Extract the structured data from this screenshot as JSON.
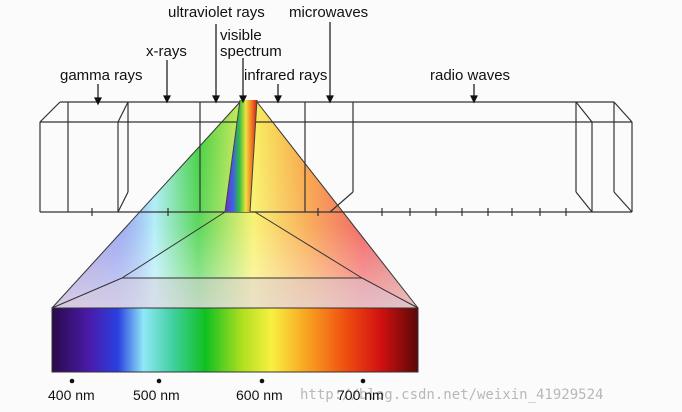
{
  "diagram": {
    "band_labels": {
      "gamma": "gamma rays",
      "xray": "x-rays",
      "ultraviolet": "ultraviolet rays",
      "visible_line1": "visible",
      "visible_line2": "spectrum",
      "infrared": "infrared rays",
      "microwave": "microwaves",
      "radio": "radio waves"
    },
    "wavelength_labels": [
      "400 nm",
      "500 nm",
      "600 nm",
      "700 nm"
    ],
    "watermark": "http://blog.csdn.net/weixin_41929524",
    "colors": {
      "line": "#333333",
      "violet": "#3a0a6a",
      "blue": "#2a3fd0",
      "cyan": "#80e0f0",
      "green": "#10c020",
      "yellow": "#f8f040",
      "orange": "#f07020",
      "red": "#d01010",
      "dark_red": "#6a0a0a"
    }
  }
}
